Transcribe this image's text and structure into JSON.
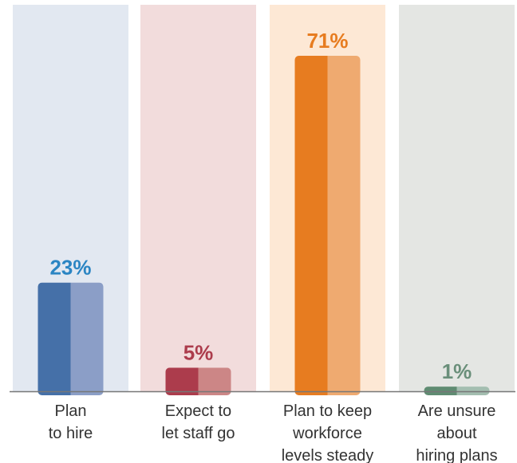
{
  "chart_data": {
    "type": "bar",
    "categories": [
      [
        "Plan",
        "to hire"
      ],
      [
        "Expect to",
        "let staff go"
      ],
      [
        "Plan to keep",
        "workforce",
        "levels steady"
      ],
      [
        "Are unsure",
        "about",
        "hiring plans"
      ]
    ],
    "values": [
      23,
      5,
      71,
      1
    ],
    "value_labels": [
      "23%",
      "5%",
      "71%",
      "1%"
    ],
    "ylim": [
      0,
      100
    ],
    "grid": false,
    "colors": {
      "panel": [
        "#e2e8f1",
        "#f2dcdc",
        "#fde8d5",
        "#e4e6e3"
      ],
      "bar_dark": [
        "#4570a8",
        "#ac3c4c",
        "#e77c20",
        "#5f8c72"
      ],
      "bar_light": [
        "#8b9ec7",
        "#cc8686",
        "#efaa70",
        "#a3beb0"
      ],
      "label": [
        "#2b85c3",
        "#ac3c4c",
        "#e77c20",
        "#6a8f7a"
      ],
      "axis": "#777777"
    }
  }
}
